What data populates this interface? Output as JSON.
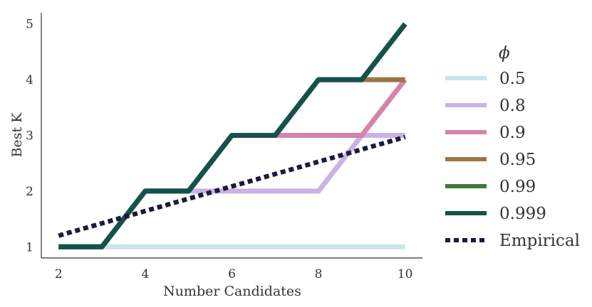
{
  "chart_data": {
    "type": "line",
    "xlabel": "Number Candidates",
    "ylabel": "Best K",
    "xlim": [
      1.6,
      10.4
    ],
    "ylim": [
      0.8,
      5.2
    ],
    "xticks": [
      2,
      4,
      6,
      8,
      10
    ],
    "yticks": [
      1,
      2,
      3,
      4,
      5
    ],
    "grid": false,
    "legend": {
      "placement": "right",
      "title": "ϕ"
    },
    "series": [
      {
        "name": "0.5",
        "color": "#c8e4ec",
        "style": "solid",
        "x": [
          2,
          3,
          4,
          5,
          6,
          7,
          8,
          9,
          10
        ],
        "y": [
          1,
          1,
          1,
          1,
          1,
          1,
          1,
          1,
          1
        ]
      },
      {
        "name": "0.8",
        "color": "#c9b3e6",
        "style": "solid",
        "x": [
          2,
          3,
          4,
          5,
          6,
          7,
          8,
          9,
          10
        ],
        "y": [
          1,
          1,
          2,
          2,
          2,
          2,
          2,
          3,
          3
        ]
      },
      {
        "name": "0.9",
        "color": "#d484a9",
        "style": "solid",
        "x": [
          2,
          3,
          4,
          5,
          6,
          7,
          8,
          9,
          10
        ],
        "y": [
          1,
          1,
          2,
          2,
          3,
          3,
          3,
          3,
          4
        ]
      },
      {
        "name": "0.95",
        "color": "#9c7546",
        "style": "solid",
        "x": [
          2,
          3,
          4,
          5,
          6,
          7,
          8,
          9,
          10
        ],
        "y": [
          1,
          1,
          2,
          2,
          3,
          3,
          4,
          4,
          4
        ]
      },
      {
        "name": "0.99",
        "color": "#3f7a3a",
        "style": "solid",
        "x": [
          2,
          3,
          4,
          5,
          6,
          7,
          8,
          9,
          10
        ],
        "y": [
          1,
          1,
          2,
          2,
          3,
          3,
          4,
          4,
          5
        ]
      },
      {
        "name": "0.999",
        "color": "#14524a",
        "style": "solid",
        "x": [
          2,
          3,
          4,
          5,
          6,
          7,
          8,
          9,
          10
        ],
        "y": [
          1,
          1,
          2,
          2,
          3,
          3,
          4,
          4,
          5
        ]
      },
      {
        "name": "Empirical",
        "color": "#1c1a3d",
        "style": "dotted",
        "x": [
          2,
          10
        ],
        "y": [
          1.2,
          2.97
        ]
      }
    ]
  }
}
